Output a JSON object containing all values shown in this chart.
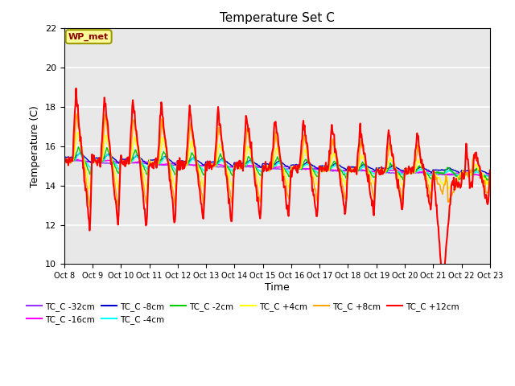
{
  "title": "Temperature Set C",
  "xlabel": "Time",
  "ylabel": "Temperature (C)",
  "ylim": [
    10,
    22
  ],
  "yticks": [
    10,
    12,
    14,
    16,
    18,
    20,
    22
  ],
  "annotation_text": "WP_met",
  "annotation_color": "#8B0000",
  "annotation_bg": "#FFFF99",
  "annotation_border": "#9B9B00",
  "plot_bg_color": "#E8E8E8",
  "fig_bg_color": "#FFFFFF",
  "grid_color": "#FFFFFF",
  "series_order": [
    "TC_C -32cm",
    "TC_C -16cm",
    "TC_C -8cm",
    "TC_C -4cm",
    "TC_C -2cm",
    "TC_C +4cm",
    "TC_C +8cm",
    "TC_C +12cm"
  ],
  "series_colors": {
    "TC_C -32cm": "#9933FF",
    "TC_C -16cm": "#FF00FF",
    "TC_C -8cm": "#0000CD",
    "TC_C -4cm": "#00FFFF",
    "TC_C -2cm": "#00CC00",
    "TC_C +4cm": "#FFFF00",
    "TC_C +8cm": "#FFA500",
    "TC_C +12cm": "#FF0000"
  },
  "legend_order": [
    "TC_C -32cm",
    "TC_C -16cm",
    "TC_C -8cm",
    "TC_C -4cm",
    "TC_C -2cm",
    "TC_C +4cm",
    "TC_C +8cm",
    "TC_C +12cm"
  ],
  "x_tick_labels": [
    "Oct 8",
    "Oct 9",
    "Oct 10",
    "Oct 11",
    "Oct 12",
    "Oct 13",
    "Oct 14",
    "Oct 15",
    "Oct 16",
    "Oct 17",
    "Oct 18",
    "Oct 19",
    "Oct 20",
    "Oct 21",
    "Oct 22",
    "Oct 23"
  ],
  "n_days": 15,
  "pts_per_day": 48,
  "base_temp": 15.3,
  "base_drift": -0.05
}
